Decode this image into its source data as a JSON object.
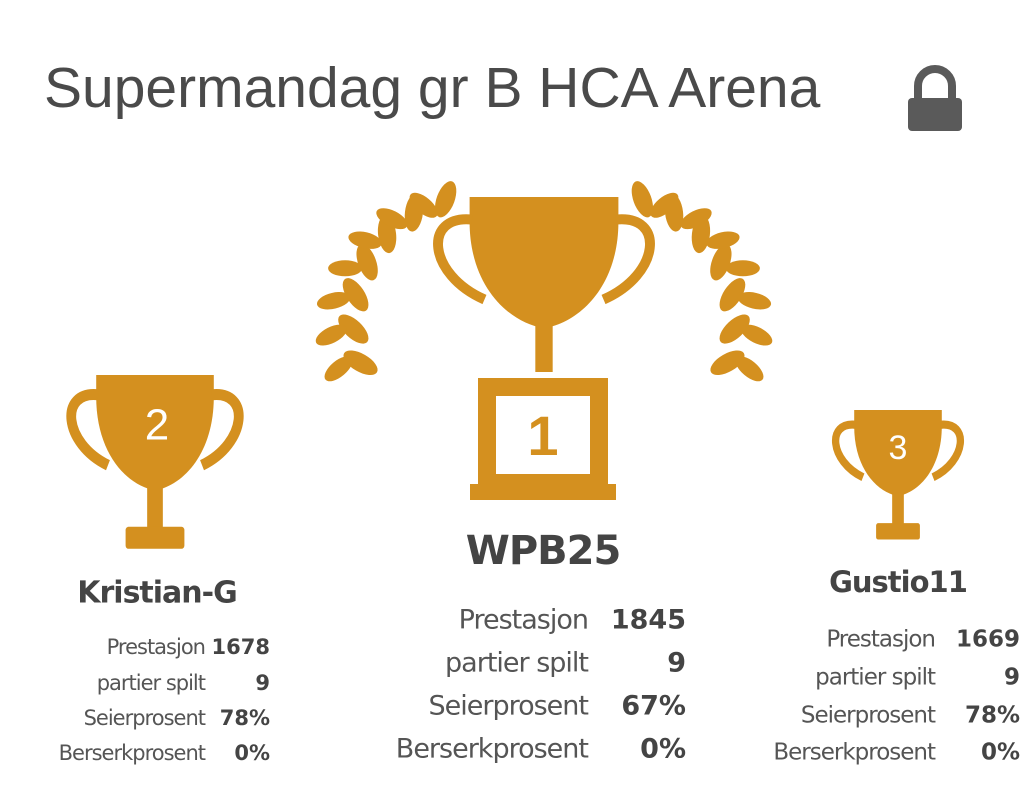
{
  "header": {
    "title": "Supermandag gr B HCA Arena"
  },
  "podium": [
    {
      "rank": "2",
      "name": "Kristian-G",
      "stats": [
        {
          "label": "Prestasjon",
          "value": "1678"
        },
        {
          "label": "partier spilt",
          "value": "9"
        },
        {
          "label": "Seierprosent",
          "value": "78%"
        },
        {
          "label": "Berserkprosent",
          "value": "0%"
        }
      ]
    },
    {
      "rank": "1",
      "name": "WPB25",
      "stats": [
        {
          "label": "Prestasjon",
          "value": "1845"
        },
        {
          "label": "partier spilt",
          "value": "9"
        },
        {
          "label": "Seierprosent",
          "value": "67%"
        },
        {
          "label": "Berserkprosent",
          "value": "0%"
        }
      ]
    },
    {
      "rank": "3",
      "name": "Gustio11",
      "stats": [
        {
          "label": "Prestasjon",
          "value": "1669"
        },
        {
          "label": "partier spilt",
          "value": "9"
        },
        {
          "label": "Seierprosent",
          "value": "78%"
        },
        {
          "label": "Berserkprosent",
          "value": "0%"
        }
      ]
    }
  ]
}
